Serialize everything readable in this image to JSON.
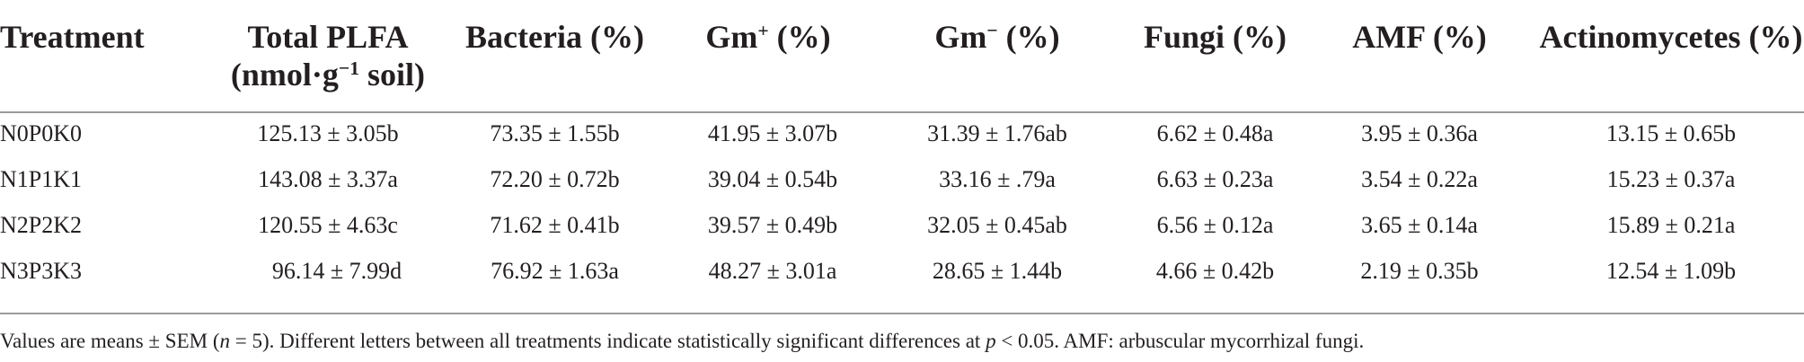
{
  "table": {
    "headers": {
      "treatment": "Treatment",
      "total_plfa_line1": "Total PLFA",
      "total_plfa_line2_pre": "(nmol·g",
      "total_plfa_line2_sup": "−1",
      "total_plfa_line2_post": " soil)",
      "bacteria": "Bacteria (%)",
      "gm_pos_pre": "Gm",
      "gm_pos_sup": "+",
      "gm_pos_post": " (%)",
      "gm_neg_pre": "Gm",
      "gm_neg_sup": "−",
      "gm_neg_post": " (%)",
      "fungi": "Fungi (%)",
      "amf": "AMF (%)",
      "actinomycetes": "Actinomycetes (%)"
    },
    "rows": [
      [
        "N0P0K0",
        "125.13 ± 3.05b",
        "73.35 ± 1.55b",
        "41.95 ± 3.07b",
        "31.39 ± 1.76ab",
        "6.62 ± 0.48a",
        "3.95 ± 0.36a",
        "13.15 ± 0.65b"
      ],
      [
        "N1P1K1",
        "143.08 ± 3.37a",
        "72.20 ± 0.72b",
        "39.04 ± 0.54b",
        "33.16 ± .79a",
        "6.63 ± 0.23a",
        "3.54 ± 0.22a",
        "15.23 ± 0.37a"
      ],
      [
        "N2P2K2",
        "120.55 ± 4.63c",
        "71.62 ± 0.41b",
        "39.57 ± 0.49b",
        "32.05 ± 0.45ab",
        "6.56 ± 0.12a",
        "3.65 ± 0.14a",
        "15.89 ± 0.21a"
      ],
      [
        "N3P3K3",
        "96.14 ± 7.99d",
        "76.92 ± 1.63a",
        "48.27 ± 3.01a",
        "28.65 ± 1.44b",
        "4.66 ± 0.42b",
        "2.19 ± 0.35b",
        "12.54 ± 1.09b"
      ]
    ]
  },
  "footnote": {
    "part1": "Values are means ± SEM (",
    "n_italic": "n",
    "part2": " = 5). Different letters between all treatments indicate statistically significant differences at ",
    "p_italic": "p",
    "part3": " < 0.05. AMF: arbuscular mycorrhizal fungi."
  }
}
